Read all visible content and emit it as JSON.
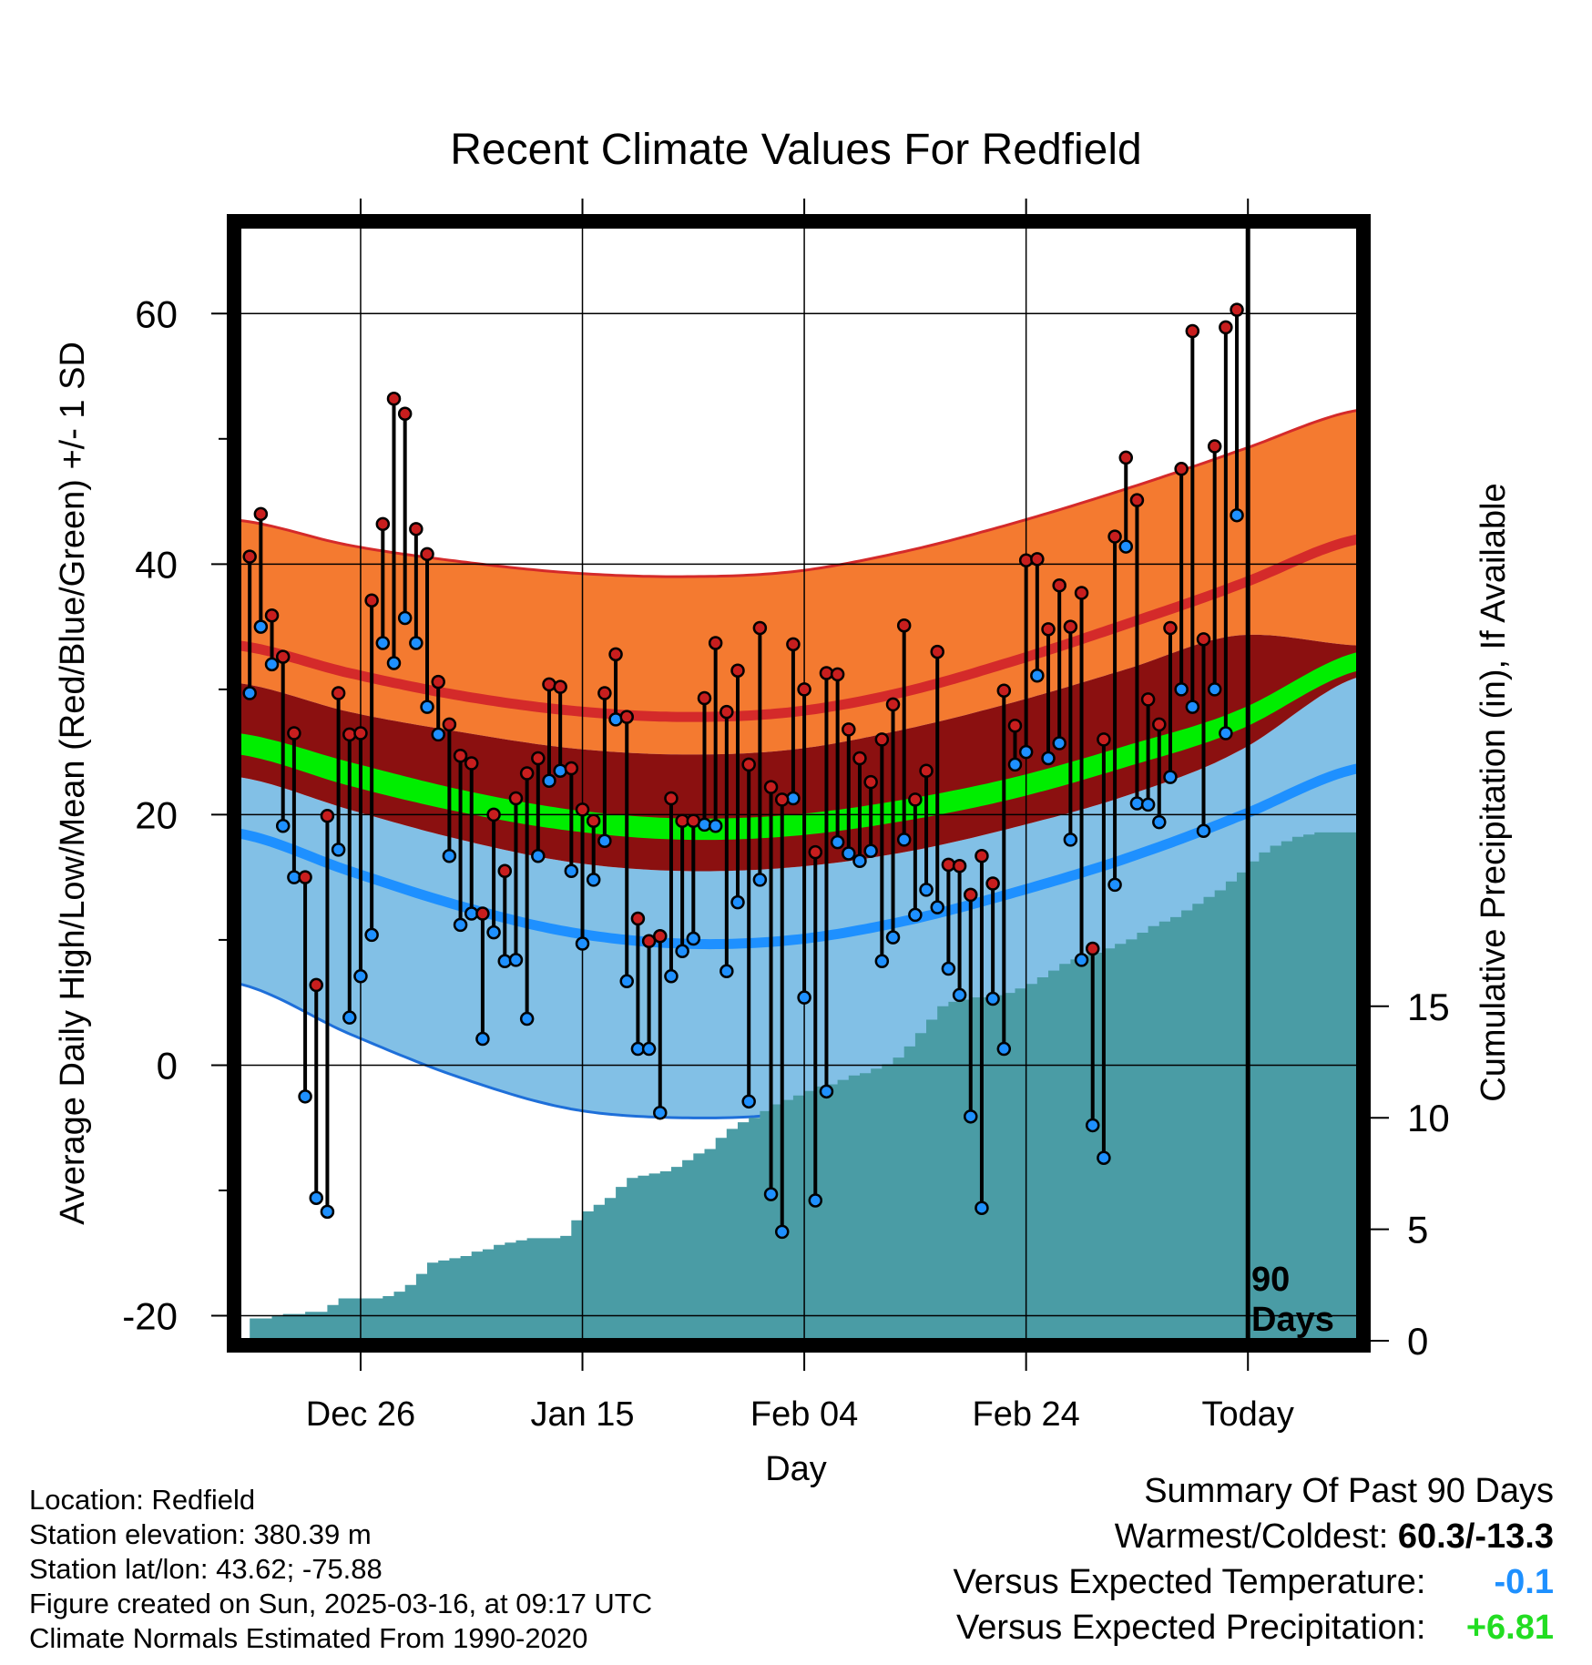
{
  "chart_data": {
    "type": "line",
    "title": "Recent Climate Values For Redfield",
    "xlabel": "Day",
    "ylabel": "Average Daily High/Low/Mean (Red/Blue/Green) +/- 1 SD",
    "y2label": "Cumulative Precipitation (in), If Available",
    "ylim": [
      -22,
      67
    ],
    "y2lim": [
      0,
      50
    ],
    "yticks": [
      "60",
      "40",
      "20",
      "0",
      "-20"
    ],
    "y2ticks": [
      "15",
      "10",
      "5",
      "0"
    ],
    "x_ticks": [
      "Dec 26",
      "Jan 15",
      "Feb 04",
      "Feb 24",
      "Today"
    ],
    "x_tick_days": [
      11,
      31,
      51,
      71,
      91
    ],
    "xlim": [
      0,
      101
    ],
    "period_label": "90 Days",
    "grid": true,
    "normals": {
      "day": [
        0,
        10,
        20,
        30,
        40,
        50,
        60,
        70,
        80,
        90,
        101
      ],
      "high_upper": [
        43.5,
        41.5,
        40.2,
        39.3,
        39.0,
        39.4,
        41.0,
        43.3,
        46.0,
        49.0,
        52.3
      ],
      "high_mean": [
        33.5,
        31.3,
        29.5,
        28.3,
        27.8,
        28.2,
        29.8,
        32.3,
        35.2,
        38.3,
        42.0
      ],
      "high_lower": [
        30.5,
        28.2,
        26.6,
        25.3,
        24.8,
        25.2,
        26.8,
        29.0,
        31.6,
        34.3,
        33.5
      ],
      "mean_upper": [
        26.5,
        24.2,
        22.0,
        20.4,
        19.7,
        20.0,
        21.2,
        23.0,
        25.5,
        28.3,
        33.0
      ],
      "mean_lower": [
        24.8,
        22.3,
        20.2,
        18.7,
        18.0,
        18.3,
        19.5,
        21.3,
        23.8,
        26.7,
        31.5
      ],
      "low_upper": [
        23.0,
        20.4,
        18.0,
        16.2,
        15.5,
        15.8,
        17.0,
        19.0,
        21.5,
        25.0,
        31.0
      ],
      "low_mean": [
        18.5,
        15.5,
        12.7,
        10.6,
        9.7,
        10.0,
        11.5,
        13.8,
        16.5,
        19.8,
        23.7
      ],
      "low_lower": [
        6.5,
        2.5,
        -1.0,
        -3.5,
        -4.2,
        -3.8,
        -1.8,
        1.2,
        4.5,
        8.5,
        13.2
      ]
    },
    "series": [
      {
        "name": "High",
        "values": [
          40.6,
          44.0,
          35.9,
          32.6,
          26.5,
          15.0,
          6.4,
          19.9,
          29.7,
          26.4,
          26.5,
          37.1,
          43.2,
          53.2,
          52.0,
          42.8,
          40.8,
          30.6,
          27.2,
          24.7,
          24.1,
          12.1,
          20.0,
          15.5,
          21.3,
          23.3,
          24.5,
          30.4,
          30.2,
          23.7,
          20.4,
          19.5,
          29.7,
          32.8,
          27.8,
          11.7,
          9.9,
          10.3,
          21.3,
          19.5,
          19.5,
          29.3,
          33.7,
          28.2,
          31.5,
          24.0,
          34.9,
          22.2,
          21.2,
          33.6,
          30.0,
          17.0,
          31.3,
          31.2,
          26.8,
          24.5,
          22.6,
          26.0,
          28.8,
          35.1,
          21.2,
          23.5,
          33.0,
          16.0,
          15.9,
          13.6,
          16.7,
          14.5,
          29.9,
          27.1,
          40.3,
          40.4,
          34.8,
          38.3,
          35.0,
          37.7,
          9.3,
          26.0,
          42.2,
          48.5,
          45.1,
          29.2,
          27.2,
          34.9,
          47.6,
          58.6,
          34.0,
          49.4,
          58.9,
          60.3
        ],
        "color": "#c81e1e"
      },
      {
        "name": "Low",
        "values": [
          29.7,
          35.0,
          32.0,
          19.1,
          15.0,
          -2.5,
          -10.6,
          -11.7,
          17.2,
          3.8,
          7.1,
          10.4,
          33.7,
          32.1,
          35.7,
          33.7,
          28.6,
          26.4,
          16.7,
          11.2,
          12.1,
          2.1,
          10.6,
          8.3,
          8.4,
          3.7,
          16.7,
          22.7,
          23.5,
          15.5,
          9.7,
          14.8,
          17.9,
          27.6,
          6.7,
          1.3,
          1.3,
          -3.8,
          7.1,
          9.1,
          10.1,
          19.2,
          19.1,
          7.5,
          13.0,
          -2.9,
          14.8,
          -10.3,
          -13.3,
          21.3,
          5.4,
          -10.8,
          -2.1,
          17.8,
          16.9,
          16.3,
          17.1,
          8.3,
          10.2,
          18.0,
          12.0,
          14.0,
          12.6,
          7.7,
          5.6,
          -4.1,
          -11.4,
          5.3,
          1.3,
          24.0,
          25.0,
          31.1,
          24.5,
          25.7,
          18.0,
          8.4,
          -4.8,
          -7.4,
          14.4,
          41.4,
          20.9,
          20.8,
          19.4,
          23.0,
          30.0,
          28.6,
          18.7,
          30.0,
          26.5,
          43.9
        ],
        "color": "#1e90ff"
      },
      {
        "name": "Precipitation",
        "values": [
          0.0,
          1.0,
          1.0,
          1.1,
          1.2,
          1.2,
          1.3,
          1.3,
          1.6,
          1.9,
          1.9,
          1.9,
          1.9,
          2.0,
          2.2,
          2.5,
          3.0,
          3.5,
          3.6,
          3.7,
          3.8,
          4.0,
          4.1,
          4.3,
          4.4,
          4.5,
          4.6,
          4.6,
          4.6,
          4.7,
          5.4,
          5.8,
          6.1,
          6.4,
          6.9,
          7.3,
          7.4,
          7.5,
          7.6,
          7.8,
          8.1,
          8.4,
          8.6,
          9.1,
          9.5,
          9.8,
          10.0,
          10.3,
          10.6,
          10.8,
          11.0,
          11.2,
          11.4,
          11.5,
          11.7,
          11.9,
          12.0,
          12.2,
          12.4,
          12.7,
          13.2,
          13.8,
          14.4,
          15.0,
          15.2,
          15.3,
          15.4,
          15.4,
          15.5,
          15.6,
          15.8,
          16.0,
          16.3,
          16.6,
          16.9,
          17.1,
          17.3,
          17.4,
          17.6,
          17.8,
          18.0,
          18.3,
          18.6,
          18.8,
          19.0,
          19.3,
          19.6,
          19.9,
          20.2,
          20.6,
          21.0,
          21.5,
          21.9,
          22.2,
          22.4,
          22.6,
          22.7,
          22.8,
          22.8,
          22.8,
          22.8,
          22.8
        ],
        "color": "#4a9ca5"
      }
    ],
    "colors": {
      "high_band": "#f47a30",
      "high_line": "#d42a2a",
      "mean_band_upper": "#8b1010",
      "mean_line": "#00ee00",
      "low_band": "#82c0e6",
      "low_line": "#1e90ff",
      "low_edge": "#1e6fd9",
      "precip_fill": "#4a9ca5"
    }
  },
  "footer": {
    "location": "Location: Redfield",
    "elevation": "Station elevation: 380.39 m",
    "latlon": "Station lat/lon: 43.62; -75.88",
    "created": "Figure created on Sun, 2025-03-16, at 09:17 UTC",
    "normals": "Climate Normals Estimated From 1990-2020"
  },
  "summary": {
    "heading": "Summary Of Past 90 Days",
    "warm_cold_label": "Warmest/Coldest:",
    "warm_cold_value": "60.3/-13.3",
    "temp_label": "Versus Expected Temperature:",
    "temp_value": "-0.1",
    "precip_label": "Versus Expected Precipitation:",
    "precip_value": "+6.81"
  }
}
